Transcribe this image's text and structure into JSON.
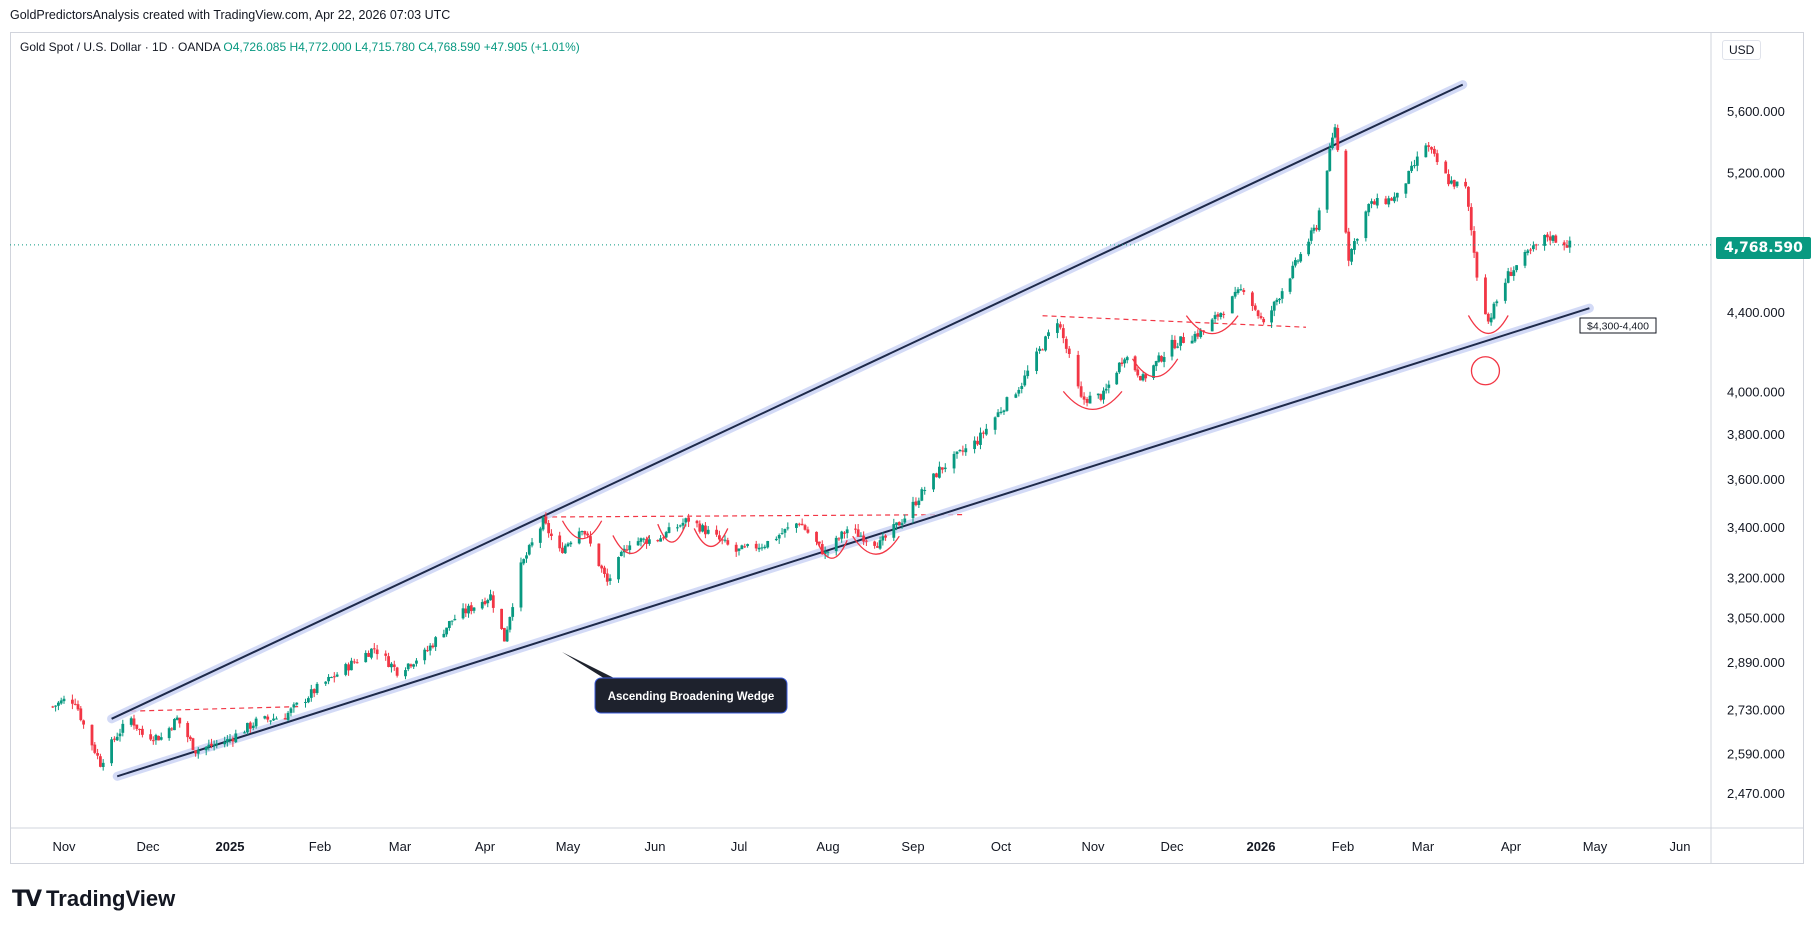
{
  "header": {
    "credit": "GoldPredictorsAnalysis created with TradingView.com, Apr 22, 2026 07:03 UTC"
  },
  "legend": {
    "symbol": "Gold Spot / U.S. Dollar · 1D · OANDA",
    "open": "O4,726.085",
    "high": "H4,772.000",
    "low": "L4,715.780",
    "close": "C4,768.590",
    "change": "+47.905 (+1.01%)"
  },
  "price_axis": {
    "currency": "USD",
    "current_price_label": "4,768.590"
  },
  "annotations": {
    "wedge_label": "Ascending Broadening Wedge",
    "support_label": "$4,300-4,400"
  },
  "footer": {
    "logo_text": "TradingView",
    "logo_mark": "TV"
  },
  "colors": {
    "up": "#089981",
    "down": "#f23645",
    "trendline": "#1e2a4a",
    "trendline_glow": "#c9d2f5",
    "dashed": "#f23645",
    "cup": "#f23645"
  },
  "chart_data": {
    "type": "candlestick",
    "title": "Gold Spot / U.S. Dollar · 1D · OANDA",
    "y_scale": "log",
    "y_ticks": [
      5600,
      5200,
      4400,
      4000,
      3800,
      3600,
      3400,
      3200,
      3050,
      2890,
      2730,
      2590,
      2470
    ],
    "y_tick_labels": [
      "5,600.000",
      "5,200.000",
      "4,400.000",
      "4,000.000",
      "3,800.000",
      "3,600.000",
      "3,400.000",
      "3,200.000",
      "3,050.000",
      "2,890.000",
      "2,730.000",
      "2,590.000",
      "2,470.000"
    ],
    "x_ticks": [
      "Nov",
      "Dec",
      "2025",
      "Feb",
      "Mar",
      "Apr",
      "May",
      "Jun",
      "Jul",
      "Aug",
      "Sep",
      "Oct",
      "Nov",
      "Dec",
      "2026",
      "Feb",
      "Mar",
      "Apr",
      "May",
      "Jun"
    ],
    "x_tick_bold": [
      false,
      false,
      true,
      false,
      false,
      false,
      false,
      false,
      false,
      false,
      false,
      false,
      false,
      false,
      true,
      false,
      false,
      false,
      false,
      false
    ],
    "last_price": 4768.59,
    "price_path": [
      [
        "2024-10-28",
        2740
      ],
      [
        "2024-11-01",
        2760
      ],
      [
        "2024-11-05",
        2760
      ],
      [
        "2024-11-08",
        2680
      ],
      [
        "2024-11-14",
        2560
      ],
      [
        "2024-11-20",
        2650
      ],
      [
        "2024-11-25",
        2700
      ],
      [
        "2024-11-29",
        2650
      ],
      [
        "2024-12-06",
        2640
      ],
      [
        "2024-12-12",
        2700
      ],
      [
        "2024-12-19",
        2600
      ],
      [
        "2024-12-31",
        2630
      ],
      [
        "2025-01-10",
        2690
      ],
      [
        "2025-01-20",
        2710
      ],
      [
        "2025-01-31",
        2800
      ],
      [
        "2025-02-10",
        2870
      ],
      [
        "2025-02-20",
        2940
      ],
      [
        "2025-02-28",
        2860
      ],
      [
        "2025-03-10",
        2920
      ],
      [
        "2025-03-20",
        3040
      ],
      [
        "2025-04-03",
        3130
      ],
      [
        "2025-04-08",
        2970
      ],
      [
        "2025-04-14",
        3240
      ],
      [
        "2025-04-22",
        3420
      ],
      [
        "2025-04-28",
        3300
      ],
      [
        "2025-05-06",
        3400
      ],
      [
        "2025-05-15",
        3180
      ],
      [
        "2025-05-23",
        3340
      ],
      [
        "2025-06-02",
        3350
      ],
      [
        "2025-06-13",
        3430
      ],
      [
        "2025-06-30",
        3300
      ],
      [
        "2025-07-10",
        3330
      ],
      [
        "2025-07-22",
        3420
      ],
      [
        "2025-07-31",
        3290
      ],
      [
        "2025-08-08",
        3390
      ],
      [
        "2025-08-20",
        3330
      ],
      [
        "2025-08-29",
        3440
      ],
      [
        "2025-09-10",
        3640
      ],
      [
        "2025-09-23",
        3770
      ],
      [
        "2025-10-08",
        4040
      ],
      [
        "2025-10-20",
        4360
      ],
      [
        "2025-10-28",
        3960
      ],
      [
        "2025-11-05",
        3980
      ],
      [
        "2025-11-13",
        4180
      ],
      [
        "2025-11-20",
        4060
      ],
      [
        "2025-12-01",
        4230
      ],
      [
        "2025-12-12",
        4300
      ],
      [
        "2025-12-26",
        4530
      ],
      [
        "2026-01-02",
        4330
      ],
      [
        "2026-01-12",
        4600
      ],
      [
        "2026-01-22",
        4880
      ],
      [
        "2026-01-29",
        5500
      ],
      [
        "2026-02-03",
        4700
      ],
      [
        "2026-02-10",
        5000
      ],
      [
        "2026-02-20",
        5050
      ],
      [
        "2026-03-02",
        5380
      ],
      [
        "2026-03-10",
        5150
      ],
      [
        "2026-03-16",
        5100
      ],
      [
        "2026-03-20",
        4600
      ],
      [
        "2026-03-24",
        4350
      ],
      [
        "2026-03-31",
        4600
      ],
      [
        "2026-04-06",
        4700
      ],
      [
        "2026-04-14",
        4820
      ],
      [
        "2026-04-22",
        4768.59
      ]
    ],
    "trendlines": [
      {
        "name": "upper",
        "from": [
          "2024-11-18",
          2700
        ],
        "to": [
          "2026-03-15",
          5780
        ]
      },
      {
        "name": "lower",
        "from": [
          "2024-11-20",
          2520
        ],
        "to": [
          "2026-04-29",
          4420
        ]
      }
    ],
    "neckline_dashes": [
      {
        "from": [
          "2024-11-25",
          2725
        ],
        "to": [
          "2025-01-25",
          2740
        ]
      },
      {
        "from": [
          "2025-04-22",
          3440
        ],
        "to": [
          "2025-09-18",
          3450
        ]
      },
      {
        "from": [
          "2025-10-15",
          4380
        ],
        "to": [
          "2026-01-18",
          4320
        ]
      }
    ],
    "cups": [
      [
        "2025-04-29",
        "2025-05-13"
      ],
      [
        "2025-05-17",
        "2025-05-30"
      ],
      [
        "2025-06-02",
        "2025-06-12"
      ],
      [
        "2025-06-15",
        "2025-06-27"
      ],
      [
        "2025-07-28",
        "2025-08-08"
      ],
      [
        "2025-08-10",
        "2025-08-27"
      ],
      [
        "2025-10-22",
        "2025-11-12"
      ],
      [
        "2025-11-16",
        "2025-12-03"
      ],
      [
        "2025-12-06",
        "2025-12-24"
      ],
      [
        "2026-03-17",
        "2026-03-31"
      ]
    ],
    "support_circle": [
      "2026-03-23",
      4100
    ]
  }
}
